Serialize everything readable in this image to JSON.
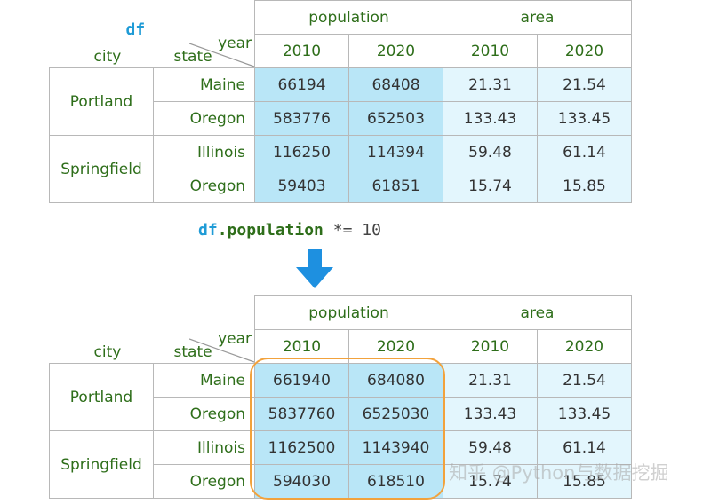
{
  "top": {
    "df_label": "df",
    "corner": {
      "city": "city",
      "state": "state",
      "year": "year"
    },
    "groups": [
      "population",
      "area"
    ],
    "years": [
      "2010",
      "2020",
      "2010",
      "2020"
    ],
    "cities": [
      "Portland",
      "Springfield"
    ],
    "rows": [
      {
        "state": "Maine",
        "values": [
          "66194",
          "68408",
          "21.31",
          "21.54"
        ]
      },
      {
        "state": "Oregon",
        "values": [
          "583776",
          "652503",
          "133.43",
          "133.45"
        ]
      },
      {
        "state": "Illinois",
        "values": [
          "116250",
          "114394",
          "59.48",
          "61.14"
        ]
      },
      {
        "state": "Oregon",
        "values": [
          "59403",
          "61851",
          "15.74",
          "15.85"
        ]
      }
    ]
  },
  "code": {
    "var": "df",
    "attr": ".population",
    "op": " *= ",
    "num": "10"
  },
  "bottom": {
    "corner": {
      "city": "city",
      "state": "state",
      "year": "year"
    },
    "groups": [
      "population",
      "area"
    ],
    "years": [
      "2010",
      "2020",
      "2010",
      "2020"
    ],
    "cities": [
      "Portland",
      "Springfield"
    ],
    "rows": [
      {
        "state": "Maine",
        "values": [
          "661940",
          "684080",
          "21.31",
          "21.54"
        ]
      },
      {
        "state": "Oregon",
        "values": [
          "5837760",
          "6525030",
          "133.43",
          "133.45"
        ]
      },
      {
        "state": "Illinois",
        "values": [
          "1162500",
          "1143940",
          "59.48",
          "61.14"
        ]
      },
      {
        "state": "Oregon",
        "values": [
          "594030",
          "618510",
          "15.74",
          "15.85"
        ]
      }
    ]
  },
  "watermark": "知乎 @Python与数据挖掘",
  "colors": {
    "population_cell": "#b9e6f7",
    "area_cell": "#e3f6fd",
    "label_green": "#2e6e1a",
    "code_blue": "#1f9bd6",
    "arrow_blue": "#1e90e0",
    "highlight_orange": "#f2a23c"
  }
}
